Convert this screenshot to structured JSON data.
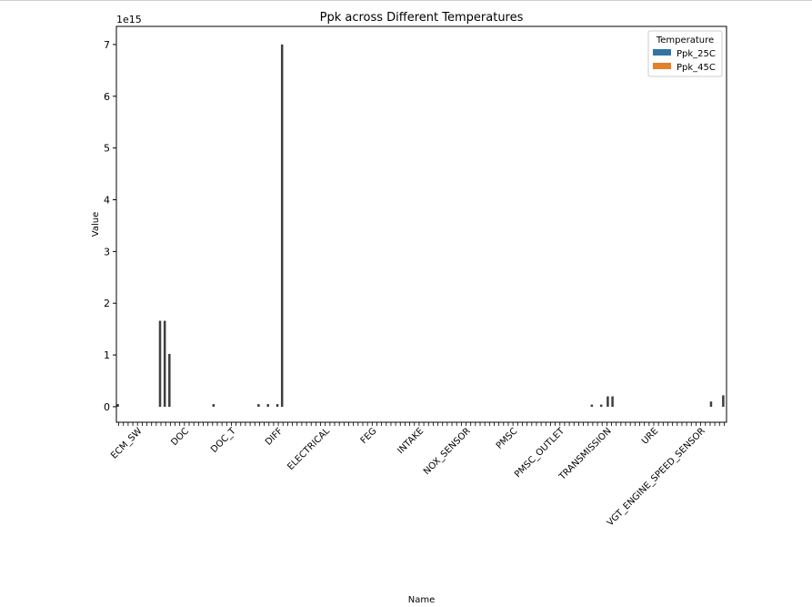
{
  "chart_data": {
    "type": "bar",
    "title": "Ppk across Different Temperatures",
    "xlabel": "Name",
    "ylabel": "Value",
    "y_offset_label": "1e15",
    "y_scale_unit": 1000000000000000.0,
    "ylim": [
      -300000000000000.0,
      7350000000000000.0
    ],
    "yticks": [
      0,
      1,
      2,
      3,
      4,
      5,
      6,
      7
    ],
    "grid": false,
    "legend": {
      "title": "Temperature",
      "placement": "top-right",
      "entries": [
        "Ppk_25C",
        "Ppk_45C"
      ]
    },
    "category_count": 130,
    "visible_x_tick_labels": [
      "ECM_SW",
      "DOC",
      "DOC_T",
      "DIFF",
      "ELECTRICAL",
      "FEG",
      "INTAKE",
      "NOX_SENSOR",
      "PMSC",
      "PMSC_OUTLET",
      "TRANSMISSION",
      "URE",
      "VGT_ENGINE_SPEED_SENSOR"
    ],
    "series": [
      {
        "name": "Ppk_25C",
        "color": "#3274a1",
        "points": [
          {
            "index": 0,
            "value": 50000000000000.0
          },
          {
            "index": 9,
            "value": 1660000000000000.0
          },
          {
            "index": 10,
            "value": 1660000000000000.0
          },
          {
            "index": 11,
            "value": 1020000000000000.0
          },
          {
            "index": 30,
            "value": 50000000000000.0
          },
          {
            "index": 32,
            "value": 50000000000000.0
          },
          {
            "index": 34,
            "value": 50000000000000.0
          },
          {
            "index": 35,
            "value": 7000000000000000.0
          },
          {
            "index": 101,
            "value": 40000000000000.0
          },
          {
            "index": 103,
            "value": 40000000000000.0
          },
          {
            "index": 129,
            "value": 220000000000000.0
          }
        ]
      },
      {
        "name": "Ppk_45C",
        "color": "#e1812c",
        "points": [
          {
            "index": 20,
            "value": 50000000000000.0
          },
          {
            "index": 104,
            "value": 200000000000000.0
          },
          {
            "index": 105,
            "value": 200000000000000.0
          },
          {
            "index": 126,
            "value": 100000000000000.0
          }
        ]
      }
    ]
  }
}
